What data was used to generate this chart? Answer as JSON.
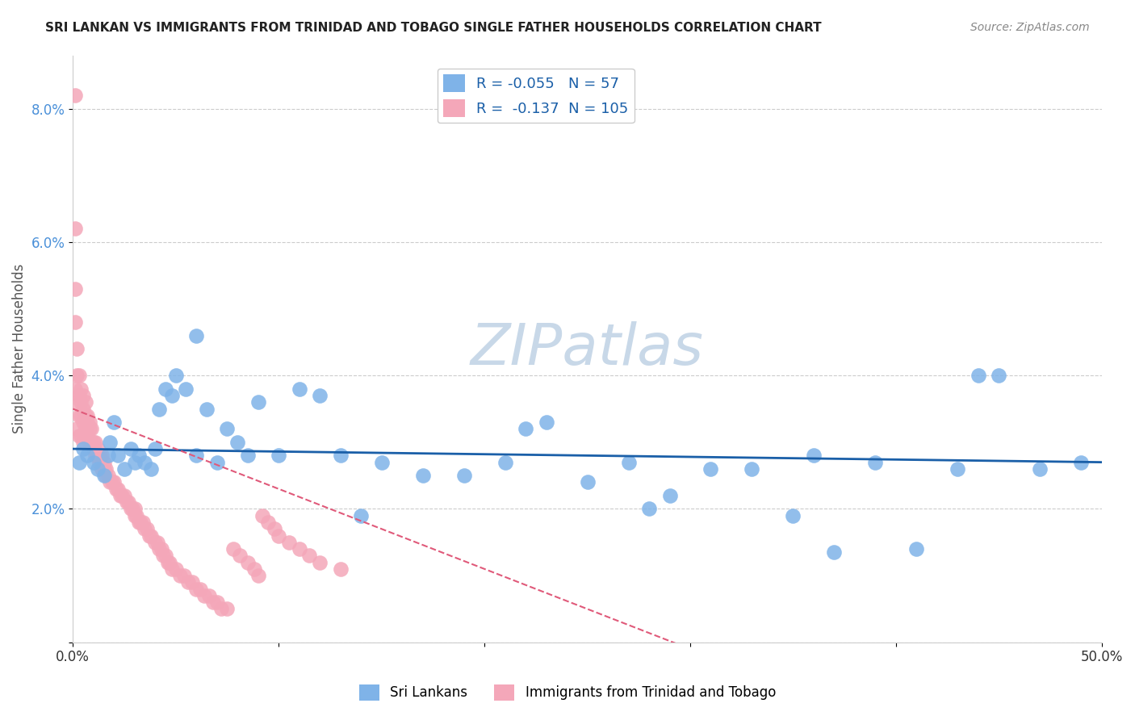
{
  "title": "SRI LANKAN VS IMMIGRANTS FROM TRINIDAD AND TOBAGO SINGLE FATHER HOUSEHOLDS CORRELATION CHART",
  "source": "Source: ZipAtlas.com",
  "ylabel": "Single Father Households",
  "xlabel": "",
  "xlim": [
    0.0,
    0.5
  ],
  "ylim": [
    0.0,
    0.088
  ],
  "yticks": [
    0.0,
    0.02,
    0.04,
    0.06,
    0.08
  ],
  "ytick_labels": [
    "",
    "2.0%",
    "4.0%",
    "6.0%",
    "8.0%"
  ],
  "xticks": [
    0.0,
    0.1,
    0.2,
    0.3,
    0.4,
    0.5
  ],
  "xtick_labels": [
    "0.0%",
    "",
    "",
    "",
    "",
    "50.0%"
  ],
  "blue_R": -0.055,
  "blue_N": 57,
  "pink_R": -0.137,
  "pink_N": 105,
  "blue_color": "#7fb3e8",
  "pink_color": "#f4a7b9",
  "blue_line_color": "#1a5fa8",
  "pink_line_color": "#e05a7a",
  "pink_line_style": "--",
  "watermark": "ZIPatlas",
  "watermark_color": "#c8d8e8",
  "legend_label_blue": "Sri Lankans",
  "legend_label_pink": "Immigrants from Trinidad and Tobago",
  "blue_x": [
    0.003,
    0.005,
    0.007,
    0.01,
    0.012,
    0.015,
    0.017,
    0.018,
    0.02,
    0.022,
    0.025,
    0.028,
    0.03,
    0.032,
    0.035,
    0.038,
    0.04,
    0.042,
    0.045,
    0.048,
    0.05,
    0.055,
    0.06,
    0.065,
    0.07,
    0.075,
    0.08,
    0.085,
    0.09,
    0.1,
    0.11,
    0.12,
    0.13,
    0.15,
    0.17,
    0.19,
    0.21,
    0.23,
    0.25,
    0.27,
    0.29,
    0.31,
    0.33,
    0.35,
    0.37,
    0.39,
    0.41,
    0.43,
    0.45,
    0.47,
    0.49,
    0.36,
    0.28,
    0.22,
    0.14,
    0.06,
    0.44
  ],
  "blue_y": [
    0.027,
    0.029,
    0.028,
    0.027,
    0.026,
    0.025,
    0.028,
    0.03,
    0.033,
    0.028,
    0.026,
    0.029,
    0.027,
    0.028,
    0.027,
    0.026,
    0.029,
    0.035,
    0.038,
    0.037,
    0.04,
    0.038,
    0.028,
    0.035,
    0.027,
    0.032,
    0.03,
    0.028,
    0.036,
    0.028,
    0.038,
    0.037,
    0.028,
    0.027,
    0.025,
    0.025,
    0.027,
    0.033,
    0.024,
    0.027,
    0.022,
    0.026,
    0.026,
    0.019,
    0.0135,
    0.027,
    0.014,
    0.026,
    0.04,
    0.026,
    0.027,
    0.028,
    0.02,
    0.032,
    0.019,
    0.046,
    0.04
  ],
  "pink_x": [
    0.001,
    0.001,
    0.001,
    0.001,
    0.001,
    0.002,
    0.002,
    0.002,
    0.002,
    0.003,
    0.003,
    0.003,
    0.003,
    0.004,
    0.004,
    0.004,
    0.004,
    0.005,
    0.005,
    0.005,
    0.005,
    0.006,
    0.006,
    0.006,
    0.007,
    0.007,
    0.007,
    0.008,
    0.008,
    0.008,
    0.009,
    0.009,
    0.01,
    0.01,
    0.011,
    0.011,
    0.012,
    0.012,
    0.013,
    0.013,
    0.014,
    0.014,
    0.015,
    0.015,
    0.016,
    0.016,
    0.017,
    0.018,
    0.019,
    0.02,
    0.021,
    0.022,
    0.023,
    0.024,
    0.025,
    0.026,
    0.027,
    0.028,
    0.029,
    0.03,
    0.03,
    0.031,
    0.032,
    0.033,
    0.034,
    0.035,
    0.036,
    0.037,
    0.038,
    0.04,
    0.041,
    0.042,
    0.043,
    0.044,
    0.045,
    0.046,
    0.047,
    0.048,
    0.05,
    0.052,
    0.054,
    0.056,
    0.058,
    0.06,
    0.062,
    0.064,
    0.066,
    0.068,
    0.07,
    0.072,
    0.075,
    0.078,
    0.081,
    0.085,
    0.088,
    0.09,
    0.092,
    0.095,
    0.098,
    0.1,
    0.105,
    0.11,
    0.115,
    0.12,
    0.13
  ],
  "pink_y": [
    0.082,
    0.062,
    0.053,
    0.048,
    0.038,
    0.044,
    0.04,
    0.036,
    0.032,
    0.04,
    0.037,
    0.034,
    0.031,
    0.038,
    0.036,
    0.034,
    0.031,
    0.037,
    0.035,
    0.033,
    0.03,
    0.036,
    0.034,
    0.032,
    0.034,
    0.033,
    0.031,
    0.033,
    0.032,
    0.03,
    0.032,
    0.03,
    0.03,
    0.029,
    0.03,
    0.028,
    0.029,
    0.028,
    0.028,
    0.027,
    0.028,
    0.026,
    0.027,
    0.026,
    0.026,
    0.025,
    0.025,
    0.024,
    0.024,
    0.024,
    0.023,
    0.023,
    0.022,
    0.022,
    0.022,
    0.021,
    0.021,
    0.02,
    0.02,
    0.02,
    0.019,
    0.019,
    0.018,
    0.018,
    0.018,
    0.017,
    0.017,
    0.016,
    0.016,
    0.015,
    0.015,
    0.014,
    0.014,
    0.013,
    0.013,
    0.012,
    0.012,
    0.011,
    0.011,
    0.01,
    0.01,
    0.009,
    0.009,
    0.008,
    0.008,
    0.007,
    0.007,
    0.006,
    0.006,
    0.005,
    0.005,
    0.014,
    0.013,
    0.012,
    0.011,
    0.01,
    0.019,
    0.018,
    0.017,
    0.016,
    0.015,
    0.014,
    0.013,
    0.012,
    0.011
  ]
}
